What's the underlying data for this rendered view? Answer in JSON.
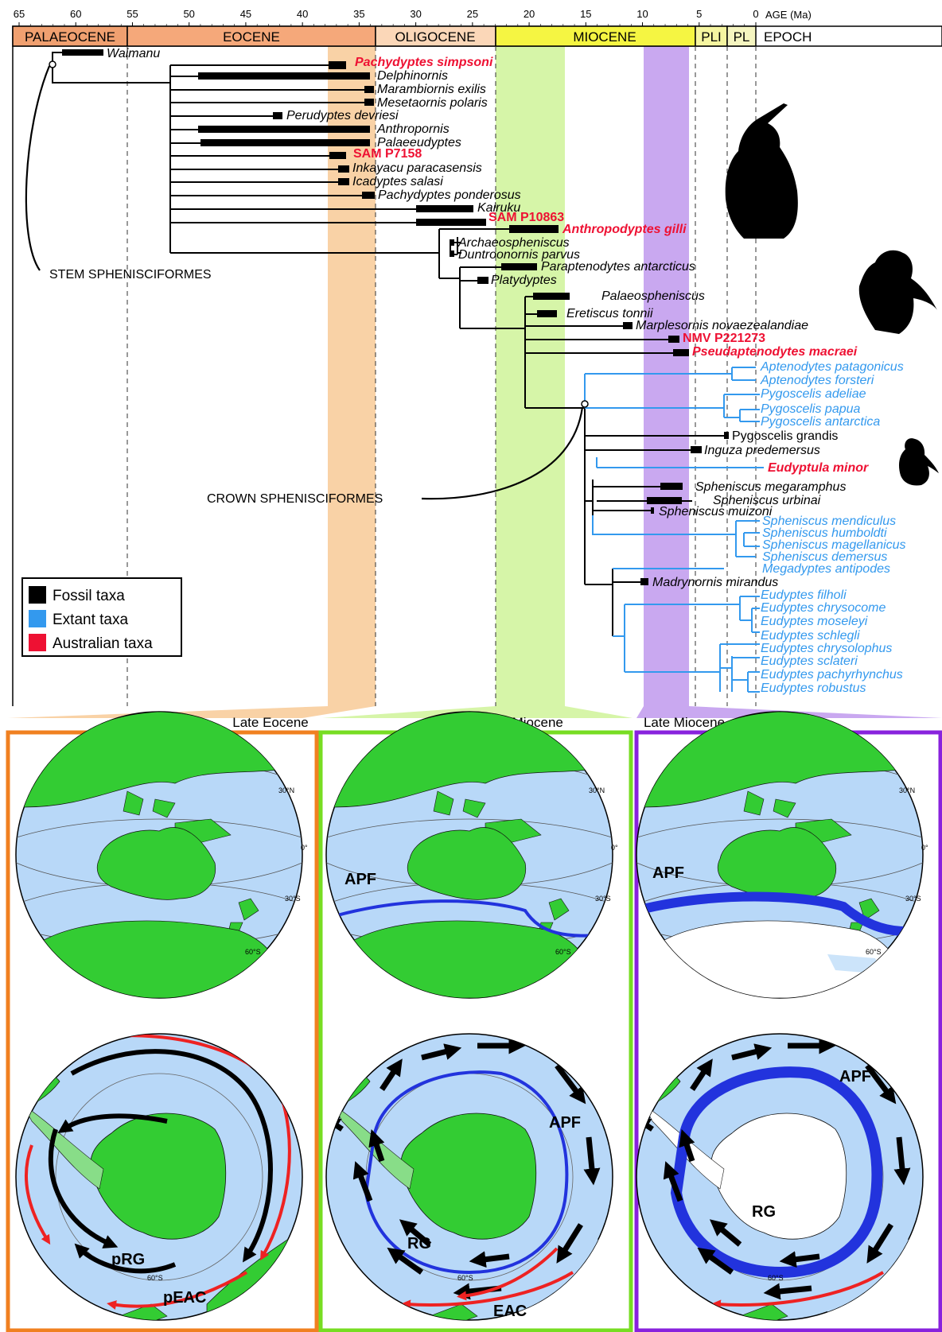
{
  "colors": {
    "fossil": "#000000",
    "extant": "#3399ee",
    "australian": "#ee1133",
    "palaeocene": "#f0a070",
    "eocene": "#f5a87a",
    "oligocene": "#fbd7b8",
    "miocene": "#f5f542",
    "late_eocene_band": "#f9d2a6",
    "early_miocene_band": "#d6f5a8",
    "late_miocene_band": "#c9a8f0",
    "land": "#33cc33",
    "ocean": "#b8d8f8",
    "apf": "#2233dd",
    "current_red": "#ee2222"
  },
  "axis": {
    "title": "AGE (Ma)",
    "ticks": [
      "65",
      "60",
      "55",
      "50",
      "45",
      "40",
      "35",
      "30",
      "25",
      "20",
      "15",
      "10",
      "5",
      "0"
    ]
  },
  "epochs": {
    "palaeocene": "PALAEOCENE",
    "eocene": "EOCENE",
    "oligocene": "OLIGOCENE",
    "miocene": "MIOCENE",
    "pliocene": "PLI",
    "pleistocene": "PL",
    "header": "EPOCH"
  },
  "taxa": {
    "waimanu": "Waimanu",
    "pachydyptes_simpsoni": "Pachydyptes simpsoni",
    "delphinornis": "Delphinornis",
    "marambiornis": "Marambiornis exilis",
    "mesetaornis": "Mesetaornis polaris",
    "perudyptes": "Perudyptes devriesi",
    "anthropornis": "Anthropornis",
    "palaeeudyptes": "Palaeeudyptes",
    "sam_p7158": "SAM P7158",
    "inkayacu": "Inkayacu paracasensis",
    "icadyptes": "Icadyptes salasi",
    "pachydyptes_ponderosus": "Pachydyptes ponderosus",
    "kairuku": "Kairuku",
    "sam_p10863": "SAM P10863",
    "anthropodyptes": "Anthropodyptes gilli",
    "archaeospheniscus": "Archaeospheniscus",
    "duntroonornis": "Duntroonornis parvus",
    "paraptenodytes": "Paraptenodytes antarcticus",
    "platydyptes": "Platydyptes",
    "palaeospheniscus": "Palaeospheniscus",
    "eretiscus": "Eretiscus tonnii",
    "marplesornis": "Marplesornis novaezealandiae",
    "nmv_p221273": "NMV P221273",
    "pseudaptenodytes": "Pseudaptenodytes macraei",
    "apt_patagonicus": "Aptenodytes patagonicus",
    "apt_forsteri": "Aptenodytes forsteri",
    "pyg_adeliae": "Pygoscelis adeliae",
    "pyg_papua": "Pygoscelis papua",
    "pyg_antarctica": "Pygoscelis antarctica",
    "pyg_grandis": "Pygoscelis grandis",
    "inguza": "Inguza predemersus",
    "eudyptula": "Eudyptula minor",
    "sph_megaramphus": "Spheniscus megaramphus",
    "sph_urbinai": "Spheniscus urbinai",
    "sph_muizoni": "Spheniscus muizoni",
    "sph_mendiculus": "Spheniscus mendiculus",
    "sph_humboldti": "Spheniscus humboldti",
    "sph_magellanicus": "Spheniscus magellanicus",
    "sph_demersus": "Spheniscus demersus",
    "megadyptes": "Megadyptes antipodes",
    "madrynornis": "Madrynornis mirandus",
    "eud_filholi": "Eudyptes filholi",
    "eud_chrysocome": "Eudyptes chrysocome",
    "eud_moseleyi": "Eudyptes moseleyi",
    "eud_schlegli": "Eudyptes schlegli",
    "eud_chrysolophus": "Eudyptes chrysolophus",
    "eud_sclateri": "Eudyptes sclateri",
    "eud_pachyrhynchus": "Eudyptes pachyrhynchus",
    "eud_robustus": "Eudyptes robustus"
  },
  "clades": {
    "stem": "STEM SPHENISCIFORMES",
    "crown": "CROWN SPHENISCIFORMES"
  },
  "legend": {
    "fossil": "Fossil taxa",
    "extant": "Extant taxa",
    "australian": "Australian taxa"
  },
  "panels": {
    "late_eocene": "Late Eocene",
    "early_miocene": "Early Miocene",
    "late_miocene": "Late Miocene"
  },
  "map_labels": {
    "apf": "APF",
    "rg": "RG",
    "prg": "pRG",
    "peac": "pEAC",
    "eac": "EAC"
  },
  "latitudes": {
    "n30": "30°N",
    "eq": "0°",
    "s30": "30°S",
    "s60": "60°S"
  }
}
